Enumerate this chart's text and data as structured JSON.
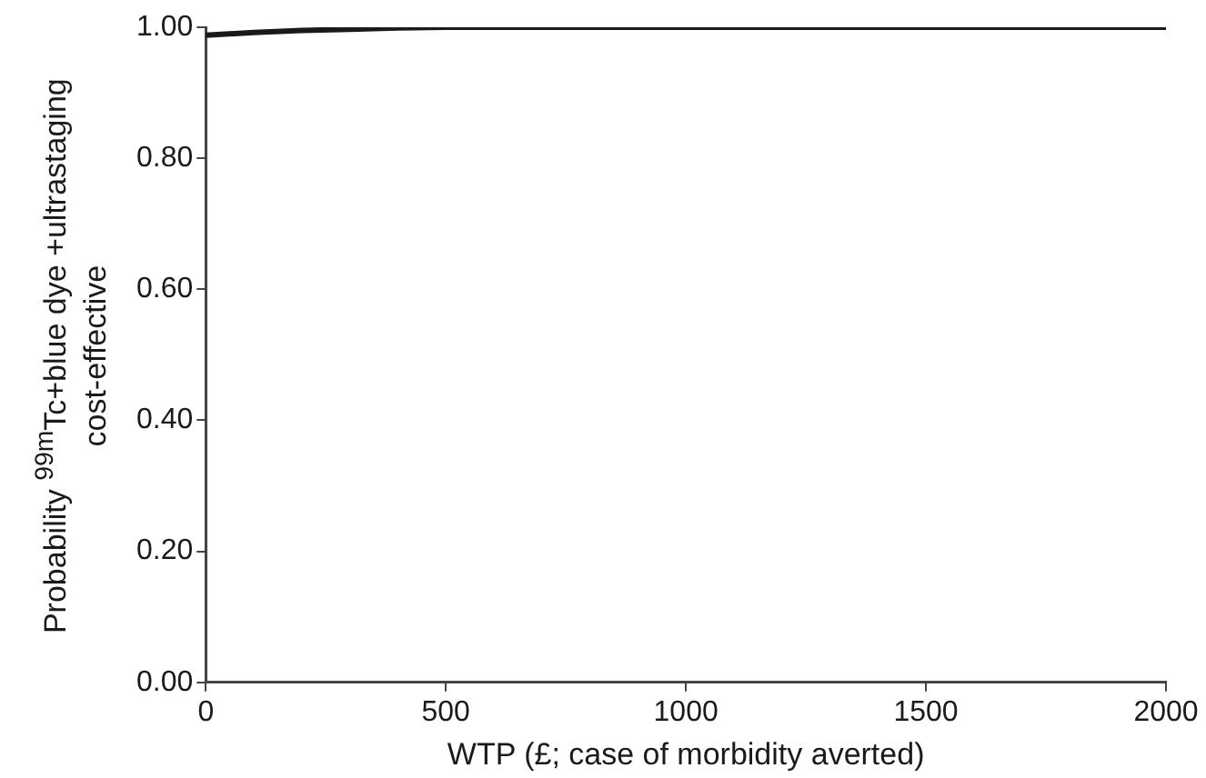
{
  "chart_data": {
    "type": "line",
    "xlabel": "WTP (£; case of morbidity averted)",
    "ylabel": "Probability $^{99m}$Tc+blue dye +ultrastaging cost-effective",
    "x": [
      0,
      100,
      200,
      300,
      400,
      500,
      2000
    ],
    "series": [
      {
        "color": "#1a1a1a",
        "values": [
          0.988,
          0.992,
          0.995,
          0.997,
          0.999,
          1,
          1
        ]
      }
    ],
    "xlim": [
      0,
      2000
    ],
    "xticks": [
      0,
      500,
      1000,
      1500,
      2000
    ],
    "ylim": [
      0,
      1
    ],
    "yticks": [
      {
        "value": 0,
        "label": "0.00"
      },
      {
        "value": 0.2,
        "label": "0.20"
      },
      {
        "value": 0.4,
        "label": "0.40"
      },
      {
        "value": 0.6,
        "label": "0.60"
      },
      {
        "value": 0.8,
        "label": "0.80"
      },
      {
        "value": 1,
        "label": "1.00"
      }
    ],
    "grid": false,
    "legend": false,
    "marker": "none",
    "line_style": "solid"
  }
}
